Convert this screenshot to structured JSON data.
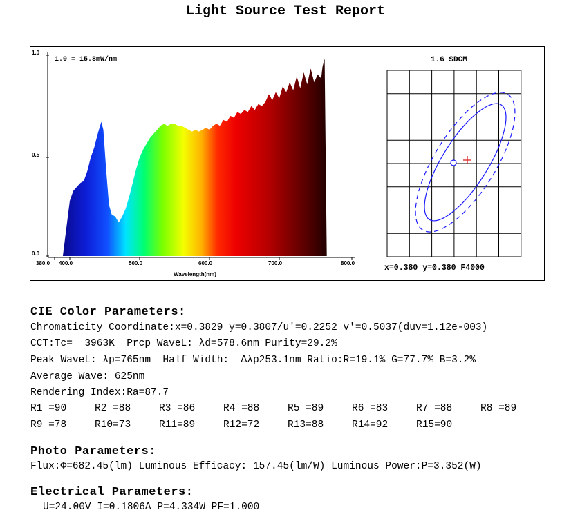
{
  "report_title": "Light Source Test Report",
  "chart_data": {
    "type": "area",
    "scale_label": "1.0 = 15.8mW/nm",
    "xlabel": "Wavelength(nm)",
    "xlim": [
      380,
      800
    ],
    "ylim": [
      0,
      1
    ],
    "x_tick_labels": [
      "380.0",
      "400.0",
      "500.0",
      "600.0",
      "700.0",
      "800.0"
    ],
    "y_tick_labels": [
      "0.0",
      "0.5",
      "1.0"
    ],
    "x": [
      390,
      400,
      405,
      410,
      415,
      420,
      425,
      430,
      435,
      440,
      445,
      448,
      452,
      456,
      460,
      465,
      470,
      475,
      480,
      485,
      490,
      495,
      500,
      505,
      510,
      515,
      520,
      525,
      530,
      535,
      540,
      545,
      550,
      555,
      560,
      565,
      570,
      575,
      580,
      585,
      590,
      595,
      600,
      605,
      610,
      615,
      620,
      625,
      630,
      635,
      640,
      645,
      650,
      655,
      660,
      665,
      670,
      675,
      680,
      685,
      690,
      695,
      700,
      705,
      710,
      715,
      720,
      725,
      730,
      735,
      740,
      745,
      750,
      755,
      760,
      762,
      765,
      768,
      770
    ],
    "values": [
      0.0,
      0.28,
      0.33,
      0.35,
      0.37,
      0.38,
      0.43,
      0.5,
      0.55,
      0.62,
      0.68,
      0.64,
      0.44,
      0.26,
      0.21,
      0.2,
      0.17,
      0.2,
      0.24,
      0.3,
      0.37,
      0.44,
      0.5,
      0.54,
      0.57,
      0.6,
      0.62,
      0.64,
      0.66,
      0.67,
      0.66,
      0.67,
      0.67,
      0.66,
      0.66,
      0.65,
      0.64,
      0.63,
      0.64,
      0.63,
      0.64,
      0.65,
      0.64,
      0.66,
      0.67,
      0.66,
      0.69,
      0.68,
      0.71,
      0.7,
      0.73,
      0.72,
      0.74,
      0.73,
      0.76,
      0.74,
      0.77,
      0.76,
      0.78,
      0.82,
      0.79,
      0.83,
      0.8,
      0.86,
      0.83,
      0.88,
      0.84,
      0.91,
      0.85,
      0.93,
      0.87,
      0.95,
      0.88,
      0.92,
      0.9,
      0.96,
      1.0,
      0.0,
      0.0
    ]
  },
  "sdcm": {
    "label": "1.6 SDCM",
    "readout": "x=0.380  y=0.380  F4000"
  },
  "cie": {
    "heading": "CIE Color Parameters:",
    "chromaticity": "Chromaticity Coordinate:x=0.3829 y=0.3807/u'=0.2252 v'=0.5037(duv=1.12e-003)",
    "cct": "CCT:Tc=  3963K  Prcp WaveL: λd=578.6nm Purity=29.2%",
    "peak": "Peak WaveL: λp=765nm  Half Width:  Δλp253.1nm Ratio:R=19.1% G=77.7% B=3.2%",
    "average": "Average Wave: 625nm",
    "rendering": "Rendering Index:Ra=87.7",
    "r_values_row1": [
      "R1 =90",
      "R2 =88",
      "R3 =86",
      "R4 =88",
      "R5 =89",
      "R6 =83",
      "R7 =88",
      "R8 =89"
    ],
    "r_values_row2": [
      "R9 =78",
      "R10=73",
      "R11=89",
      "R12=72",
      "R13=88",
      "R14=92",
      "R15=90"
    ]
  },
  "photo": {
    "heading": "Photo Parameters:",
    "flux": "Flux:Φ=682.45(lm) Luminous Efficacy: 157.45(lm/W) Luminous Power:P=3.352(W)"
  },
  "electrical": {
    "heading": "Electrical Parameters:",
    "values": "U=24.00V I=0.1806A P=4.334W PF=1.000"
  }
}
